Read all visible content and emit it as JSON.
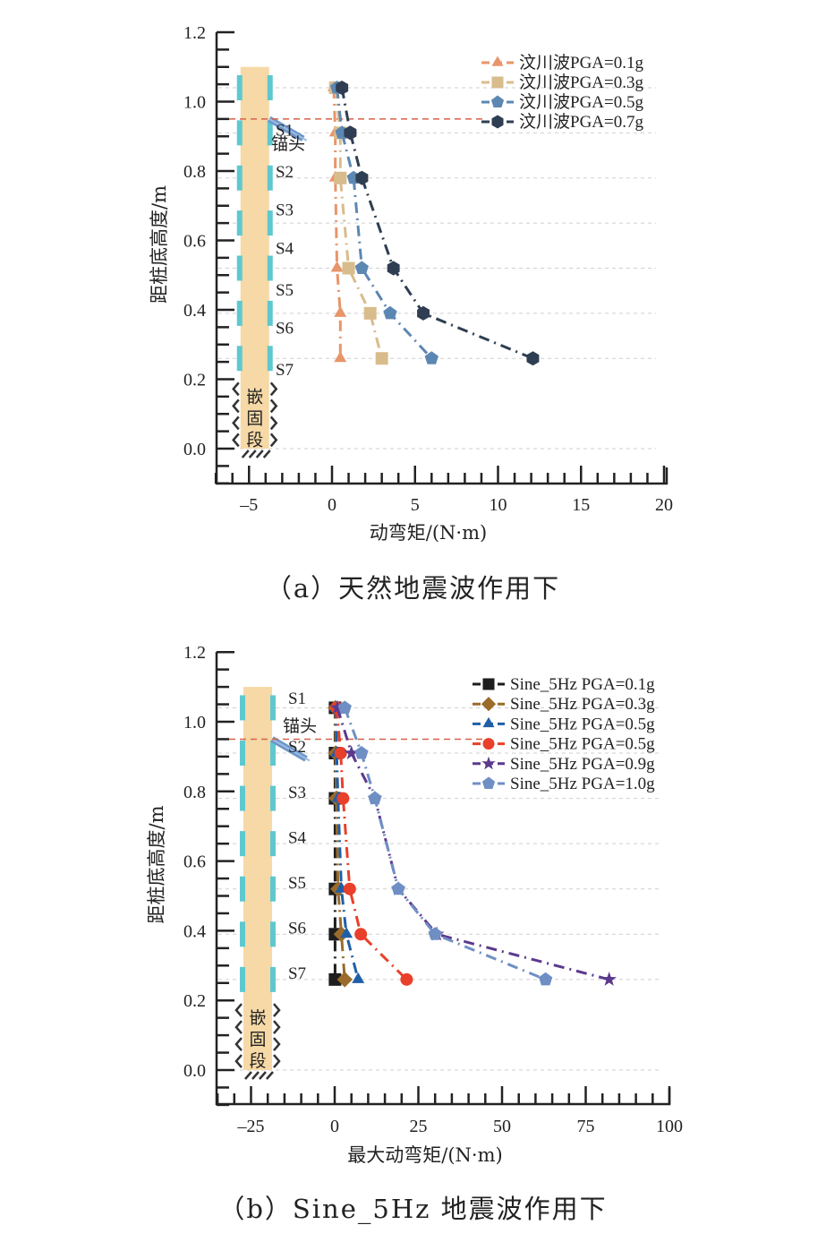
{
  "chart_data": [
    {
      "type": "line",
      "id": "a",
      "caption": "（a）天然地震波作用下",
      "xlabel": "动弯矩/(N·m)",
      "ylabel": "距桩底高度/m",
      "xlim": [
        -7,
        20
      ],
      "ylim": [
        -0.1,
        1.2
      ],
      "xticks": [
        -5,
        0,
        5,
        10,
        15,
        20
      ],
      "xtick_labels": [
        "–5",
        "0",
        "5",
        "10",
        "15",
        "20"
      ],
      "yticks": [
        0.0,
        0.2,
        0.4,
        0.6,
        0.8,
        1.0,
        1.2
      ],
      "ytick_labels": [
        "0.0",
        "0.2",
        "0.4",
        "0.6",
        "0.8",
        "1.0",
        "1.2"
      ],
      "grid": "horizontal dashed at sensor heights",
      "legend_position": "top-right",
      "anchor_line_y": 0.95,
      "pile": {
        "x_range": [
          -5.5,
          -3.8
        ],
        "top": 1.1,
        "bottom": 0.0
      },
      "sensor_heights": [
        1.04,
        0.91,
        0.78,
        0.65,
        0.52,
        0.39,
        0.26
      ],
      "annotations": {
        "sensors": [
          {
            "label": "S1",
            "y": 0.92
          },
          {
            "label": "S2",
            "y": 0.8
          },
          {
            "label": "S3",
            "y": 0.69
          },
          {
            "label": "S4",
            "y": 0.58
          },
          {
            "label": "S5",
            "y": 0.46
          },
          {
            "label": "S6",
            "y": 0.35
          },
          {
            "label": "S7",
            "y": 0.23
          }
        ],
        "anchor_head": "锚头",
        "embedded_segment": [
          "嵌",
          "固",
          "段"
        ]
      },
      "series": [
        {
          "name": "汶川波PGA=0.1g",
          "marker": "triangle",
          "color": "#E8956A",
          "y": [
            1.04,
            0.91,
            0.78,
            0.52,
            0.39,
            0.26
          ],
          "x": [
            0.1,
            0.2,
            0.2,
            0.3,
            0.5,
            0.5
          ]
        },
        {
          "name": "汶川波PGA=0.3g",
          "marker": "square",
          "color": "#D9BC8C",
          "y": [
            1.04,
            0.91,
            0.78,
            0.52,
            0.39,
            0.26
          ],
          "x": [
            0.2,
            0.5,
            0.5,
            1.0,
            2.3,
            3.0
          ]
        },
        {
          "name": "汶川波PGA=0.5g",
          "marker": "pentagon",
          "color": "#5D87B3",
          "y": [
            1.04,
            0.91,
            0.78,
            0.52,
            0.39,
            0.26
          ],
          "x": [
            0.3,
            0.6,
            1.3,
            1.8,
            3.5,
            6.0
          ]
        },
        {
          "name": "汶川波PGA=0.7g",
          "marker": "hexagon",
          "color": "#2F3E52",
          "y": [
            1.04,
            0.91,
            0.78,
            0.52,
            0.39,
            0.26
          ],
          "x": [
            0.6,
            1.1,
            1.8,
            3.7,
            5.5,
            12.1
          ]
        }
      ]
    },
    {
      "type": "line",
      "id": "b",
      "caption": "（b）Sine_5Hz 地震波作用下",
      "xlabel": "最大动弯矩/(N·m)",
      "ylabel": "距桩底高度/m",
      "xlim": [
        -35,
        100
      ],
      "ylim": [
        -0.1,
        1.2
      ],
      "xticks": [
        -25,
        0,
        25,
        50,
        75,
        100
      ],
      "xtick_labels": [
        "–25",
        "0",
        "25",
        "50",
        "75",
        "100"
      ],
      "yticks": [
        0.0,
        0.2,
        0.4,
        0.6,
        0.8,
        1.0,
        1.2
      ],
      "ytick_labels": [
        "0.0",
        "0.2",
        "0.4",
        "0.6",
        "0.8",
        "1.0",
        "1.2"
      ],
      "grid": "horizontal dashed at sensor heights",
      "legend_position": "top-right",
      "anchor_line_y": 0.95,
      "pile": {
        "x_range": [
          -27,
          -19
        ],
        "top": 1.1,
        "bottom": 0.0
      },
      "sensor_heights": [
        1.04,
        0.91,
        0.78,
        0.65,
        0.52,
        0.39,
        0.26
      ],
      "annotations": {
        "sensors": [
          {
            "label": "S1",
            "y": 1.07
          },
          {
            "label": "S2",
            "y": 0.93
          },
          {
            "label": "S3",
            "y": 0.8
          },
          {
            "label": "S4",
            "y": 0.67
          },
          {
            "label": "S5",
            "y": 0.54
          },
          {
            "label": "S6",
            "y": 0.41
          },
          {
            "label": "S7",
            "y": 0.28
          }
        ],
        "anchor_head": "锚头",
        "embedded_segment": [
          "嵌",
          "固",
          "段"
        ]
      },
      "series": [
        {
          "name": "Sine_5Hz PGA=0.1g",
          "marker": "square",
          "color": "#1E1E1E",
          "y": [
            1.04,
            0.91,
            0.78,
            0.52,
            0.39,
            0.26
          ],
          "x": [
            0.1,
            0.1,
            0.1,
            0.1,
            0.1,
            0.1
          ]
        },
        {
          "name": "Sine_5Hz PGA=0.3g",
          "marker": "diamond",
          "color": "#9A6B2A",
          "y": [
            1.04,
            0.91,
            0.78,
            0.52,
            0.39,
            0.26
          ],
          "x": [
            0.2,
            0.3,
            0.5,
            1.0,
            2.0,
            3.0
          ]
        },
        {
          "name": "Sine_5Hz PGA=0.5g",
          "marker": "triangle",
          "color": "#1F5FA8",
          "y": [
            1.04,
            0.91,
            0.78,
            0.52,
            0.39,
            0.26
          ],
          "x": [
            0.4,
            0.6,
            1.0,
            2.0,
            3.5,
            7.0
          ]
        },
        {
          "name": "Sine_5Hz PGA=0.5g",
          "marker": "circle",
          "color": "#E8402A",
          "y": [
            1.04,
            0.91,
            0.78,
            0.52,
            0.39,
            0.26
          ],
          "x": [
            0.6,
            1.8,
            2.5,
            4.5,
            7.8,
            21.5
          ]
        },
        {
          "name": "Sine_5Hz PGA=0.9g",
          "marker": "star",
          "color": "#5B3A8E",
          "y": [
            1.04,
            0.91,
            0.78,
            0.52,
            0.39,
            0.26
          ],
          "x": [
            0.8,
            5.0,
            12.0,
            19.0,
            30.5,
            82.0
          ]
        },
        {
          "name": "Sine_5Hz PGA=1.0g",
          "marker": "pentagon",
          "color": "#6F8FC4",
          "y": [
            1.04,
            0.91,
            0.78,
            0.52,
            0.39,
            0.26
          ],
          "x": [
            3.0,
            8.0,
            12.0,
            19.0,
            30.0,
            63.0
          ]
        }
      ]
    }
  ]
}
